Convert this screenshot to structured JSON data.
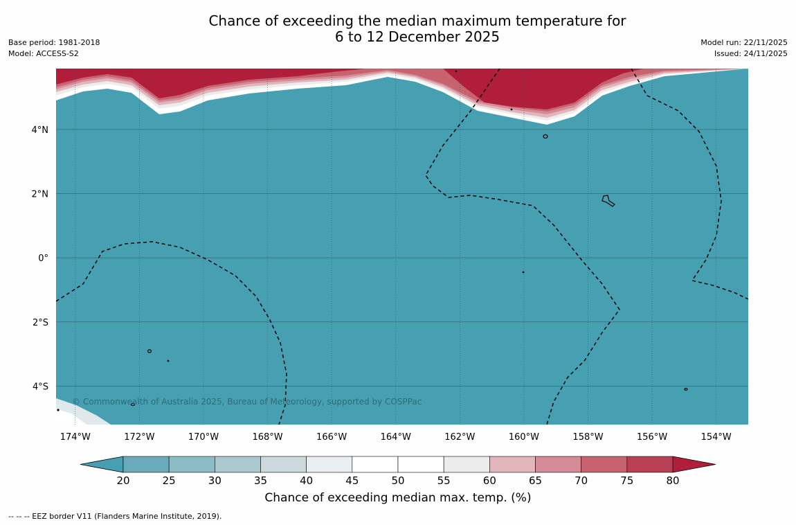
{
  "title": {
    "line1": "Chance of exceeding the median maximum temperature for",
    "line2": "6 to 12 December 2025"
  },
  "meta": {
    "base_period": "Base period: 1981-2018",
    "model": "Model: ACCESS-S2",
    "model_run": "Model run: 22/11/2025",
    "issued": "Issued: 24/11/2025"
  },
  "map": {
    "lon_range": [
      -174.6,
      -153.0
    ],
    "lat_range": [
      -5.2,
      5.9
    ],
    "lat_ticks": [
      {
        "value": 4,
        "label": "4°N"
      },
      {
        "value": 2,
        "label": "2°N"
      },
      {
        "value": 0,
        "label": "0°"
      },
      {
        "value": -2,
        "label": "2°S"
      },
      {
        "value": -4,
        "label": "4°S"
      }
    ],
    "lon_ticks": [
      {
        "value": -174,
        "label": "174°W"
      },
      {
        "value": -172,
        "label": "172°W"
      },
      {
        "value": -170,
        "label": "170°W"
      },
      {
        "value": -168,
        "label": "168°W"
      },
      {
        "value": -166,
        "label": "166°W"
      },
      {
        "value": -164,
        "label": "164°W"
      },
      {
        "value": -162,
        "label": "162°W"
      },
      {
        "value": -160,
        "label": "160°W"
      },
      {
        "value": -158,
        "label": "158°W"
      },
      {
        "value": -156,
        "label": "156°W"
      },
      {
        "value": -154,
        "label": "154°W"
      }
    ],
    "copyright": "© Commonwealth of Australia 2025, Bureau of Meteorology, supported by COSPPac",
    "ocean_color": "#47a0b2",
    "warm_color": "#b11e3b"
  },
  "colorbar": {
    "label": "Chance of exceeding median max. temp. (%)",
    "ticks": [
      "20",
      "25",
      "30",
      "35",
      "40",
      "45",
      "50",
      "55",
      "60",
      "65",
      "70",
      "75",
      "80"
    ],
    "under_color": "#47a0b2",
    "over_color": "#b11e3b",
    "bin_colors": [
      "#6aaabb",
      "#8bbcc6",
      "#a9c9cf",
      "#cbd9dc",
      "#e9eff0",
      "#ffffff",
      "#ffffff",
      "#ececec",
      "#e2b5bd",
      "#d58a97",
      "#c6636f",
      "#b83f54"
    ]
  },
  "footnote": "--  --  -- EEZ border V11 (Flanders Marine Institute, 2019)."
}
